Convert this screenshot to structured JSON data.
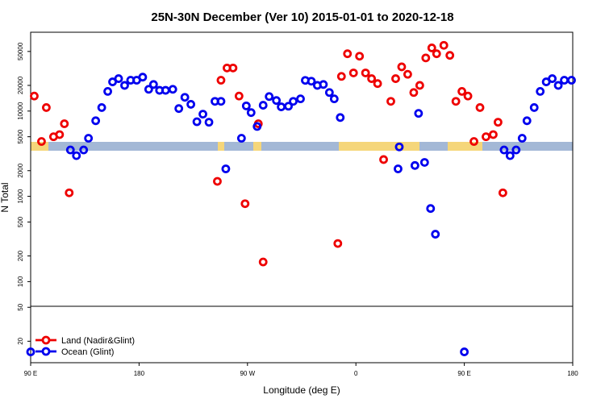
{
  "chart_data": {
    "type": "scatter",
    "title": "25N-30N December (Ver 10)   2015-01-01 to 2020-12-18",
    "x_label": "Longitude (deg E)",
    "y_label": "N Total",
    "log_y": true,
    "legend": "bottomleft",
    "xlim": [
      90,
      540
    ],
    "xticks": [
      {
        "value": 90,
        "label": "90 E"
      },
      180,
      {
        "value": 270,
        "label": "90 W"
      },
      {
        "value": 360,
        "label": "0"
      },
      {
        "value": 450,
        "label": "90 E"
      },
      {
        "value": 540,
        "label": "180"
      }
    ],
    "ylim": [
      11.2,
      84000
    ],
    "yticks": [
      20,
      50,
      100,
      200,
      500,
      1000,
      2000,
      5000,
      10000,
      20000,
      50000
    ],
    "series": [
      {
        "name": "Land (Nadir&Glint)",
        "color": "#ee0000",
        "x": [
          93,
          99,
          103,
          109,
          114,
          118,
          122,
          245,
          248,
          253,
          258,
          263,
          268,
          279,
          283,
          345,
          348,
          353,
          358,
          363,
          368,
          373,
          378,
          383,
          389,
          393,
          398,
          403,
          408,
          413,
          418,
          423,
          427,
          433,
          438,
          443,
          448,
          453,
          458,
          463,
          468,
          474,
          478,
          482
        ],
        "values": [
          15000,
          4400,
          11000,
          5000,
          5300,
          7100,
          1100,
          1500,
          23000,
          32000,
          32000,
          15000,
          820,
          7100,
          170,
          280,
          25500,
          47000,
          28000,
          44000,
          28000,
          24000,
          21000,
          2700,
          13000,
          24000,
          33000,
          27000,
          16500,
          20000,
          42000,
          55000,
          47000,
          59000,
          45000,
          13000,
          17000,
          15000,
          4400,
          11000,
          5000,
          5300,
          7400,
          1100
        ]
      },
      {
        "name": "Ocean (Glint)",
        "color": "#0000ee",
        "x": [
          90,
          123,
          128,
          134,
          138,
          144,
          149,
          154,
          158,
          163,
          168,
          173,
          178,
          183,
          188,
          192,
          197,
          202,
          208,
          213,
          218,
          223,
          228,
          233,
          238,
          243,
          248,
          252,
          265,
          269,
          273,
          278,
          283,
          288,
          294,
          298,
          304,
          308,
          314,
          318,
          323,
          328,
          333,
          338,
          342,
          347,
          395,
          396,
          409,
          412,
          417,
          422,
          426,
          450,
          483,
          488,
          493,
          498,
          502,
          508,
          513,
          518,
          523,
          528,
          533,
          539
        ],
        "values": [
          15,
          3500,
          3000,
          3500,
          4800,
          7700,
          11000,
          17000,
          22000,
          24000,
          20000,
          23000,
          23000,
          25000,
          18000,
          20500,
          17500,
          17500,
          18000,
          10700,
          14500,
          12000,
          7500,
          9200,
          7400,
          13000,
          13000,
          2100,
          4800,
          11500,
          9600,
          6600,
          11700,
          14800,
          13300,
          11200,
          11400,
          13000,
          13900,
          22900,
          22400,
          20000,
          20500,
          16500,
          13900,
          8400,
          2100,
          3800,
          2300,
          9400,
          2500,
          720,
          360,
          15,
          3500,
          3000,
          3500,
          4800,
          7700,
          11000,
          17000,
          22000,
          24000,
          20000,
          23000,
          23000
        ]
      }
    ]
  }
}
